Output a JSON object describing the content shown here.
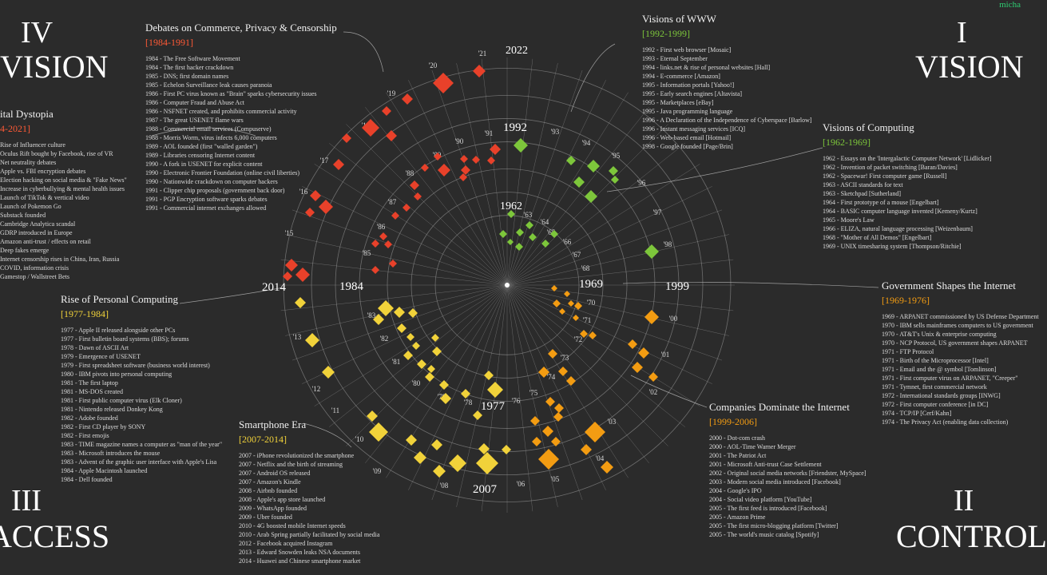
{
  "signature": "micha",
  "quadrants": {
    "q1": {
      "numeral": "I",
      "word": "VISION"
    },
    "q2": {
      "numeral": "II",
      "word": "CONTROL"
    },
    "q3": {
      "numeral": "III",
      "word": "ACCESS"
    },
    "q4": {
      "numeral": "IV",
      "word": "VISION"
    }
  },
  "year_markers": [
    "2022",
    "1992",
    "1962",
    "1969",
    "1999",
    "1977",
    "2007",
    "2014",
    "1984"
  ],
  "ring_labels": [
    "'21",
    "'20",
    "'19",
    "'18",
    "'17",
    "'16",
    "'15",
    "'13",
    "'12",
    "'11",
    "'10",
    "'09",
    "'08",
    "'06",
    "'05",
    "'04",
    "'03",
    "'02",
    "'01",
    "'00",
    "'98",
    "'97",
    "'96",
    "'95",
    "'94",
    "'93",
    "'91",
    "'90",
    "'89",
    "'88",
    "'87",
    "'86",
    "'85",
    "'83",
    "'82",
    "'81",
    "'80",
    "'79",
    "'78",
    "'76",
    "'75",
    "'74",
    "'73",
    "'72",
    "'71",
    "'70",
    "'68",
    "'67",
    "'66",
    "'65",
    "'64",
    "'63"
  ],
  "panels": {
    "www": {
      "title": "Visions of WWW",
      "range": "[1992-1999]",
      "items": [
        "1992 - First web browser [Mosaic]",
        "1993 - Eternal September",
        "1994 - links.net & rise of personal websites [Hall]",
        "1994 - E-commerce [Amazon]",
        "1995 - Information portals [Yahoo!]",
        "1995 - Early search engines [Altavista]",
        "1995 - Marketplaces [eBay]",
        "1995 - Java programming language",
        "1996 - A Declaration of the Independence of Cyberspace [Barlow]",
        "1996 - Instant messaging services [ICQ]",
        "1996 - Web-based email [Hotmail]",
        "1998 - Google founded [Page/Brin]"
      ]
    },
    "computing": {
      "title": "Visions of Computing",
      "range": "[1962-1969]",
      "items": [
        "1962 - Essays on the 'Intergalactic Computer Network' [Lidlicker]",
        "1962 - Invention of packet switching [Baran/Davies]",
        "1962 - Spacewar! First computer game [Russell]",
        "1963 - ASCII standards for text",
        "1963 - Sketchpad [Sutherland]",
        "1964 - First prototype of a mouse [Engelbart]",
        "1964 - BASIC computer language invented [Kemeny/Kurtz]",
        "1965 - Moore's Law",
        "1966 - ELIZA, natural language processing [Weizenbaum]",
        "1968 - \"Mother of All Demos\" [Engelbart]",
        "1969 - UNIX timesharing system [Thompson/Ritchie]"
      ]
    },
    "government": {
      "title": "Government Shapes the Internet",
      "range": "[1969-1976]",
      "items": [
        "1969 - ARPANET commissioned by US Defense Department",
        "1970 - IBM sells mainframes computers to US government",
        "1970 - AT&T's Unix & enterprise computing",
        "1970 - NCP Protocol, US government shapes ARPANET",
        "1971 - FTP Protocol",
        "1971 - Birth of the Microprocessor [Intel]",
        "1971 - Email and the @ symbol [Tomlinson]",
        "1971 - First computer virus on ARPANET, \"Creeper\"",
        "1971 - Tymnet, first commercial network",
        "1972 - International standards groups [INWG]",
        "1972 - First computer conference [in DC]",
        "1974 - TCP/IP [Cerf/Kahn]",
        "1974 - The Privacy Act (enabling data collection)"
      ]
    },
    "companies": {
      "title": "Companies Dominate the Internet",
      "range": "[1999-2006]",
      "items": [
        "2000 - Dot-com crash",
        "2000 - AOL-Time Warner Merger",
        "2001 - The Patriot Act",
        "2001 - Microsoft Anti-trust Case Settlement",
        "2002 - Original social media networks [Friendster, MySpace]",
        "2003 - Modern social media introduced [Facebook]",
        "2004 - Google's IPO",
        "2004 - Social video platform [YouTube]",
        "2005 - The first feed is introduced [Facebook]",
        "2005 - Amazon Prime",
        "2005 - The first micro-blogging platform [Twitter]",
        "2005 - The world's music catalog [Spotify]"
      ]
    },
    "smartphone": {
      "title": "Smartphone Era",
      "range": "[2007-2014]",
      "items": [
        "2007 - iPhone revolutionized the smartphone",
        "2007 - Netflix and the birth of streaming",
        "2007 - Android OS released",
        "2007 - Amazon's Kindle",
        "2008 - Airbnb founded",
        "2008 - Apple's app store launched",
        "2009 - WhatsApp founded",
        "2009 - Uber founded",
        "2010 - 4G boosted mobile Internet speeds",
        "2010 - Arab Spring partially facilitated by social media",
        "2012 - Facebook acquired Instagram",
        "2013 - Edward Snowden leaks NSA documents",
        "2014 - Huawei and Chinese smartphone market"
      ]
    },
    "personal": {
      "title": "Rise of Personal Computing",
      "range": "[1977-1984]",
      "items": [
        "1977 - Apple II released alongside other PCs",
        "1977 - First bulletin board systems (BBS); forums",
        "1978 - Dawn of ASCII Art",
        "1979 - Emergence of USENET",
        "1979 - First spreadsheet software (business world interest)",
        "1980 - IBM pivots into personal computing",
        "1981 - The first laptop",
        "1981 - MS-DOS created",
        "1981 - First public computer virus (Elk Cloner)",
        "1981 - Nintendo released Donkey Kong",
        "1982 - Adobe founded",
        "1982 - First CD player by SONY",
        "1982 - First emojis",
        "1983 - TIME magazine names a computer as \"man of the year\"",
        "1983 - Microsoft introduces the mouse",
        "1983 - Advent of the graphic user interface with Apple's Lisa",
        "1984 - Apple Macintosh launched",
        "1984 - Dell founded"
      ]
    },
    "commerce": {
      "title": "Debates on Commerce, Privacy & Censorship",
      "range": "[1984-1991]",
      "items": [
        "1984 - The Free Software Movement",
        "1984 - The first hacker crackdown",
        "1985 - DNS; first domain names",
        "1985 - Echelon Surveillance leak causes paranoia",
        "1986 - First PC virus known as \"Brain\" sparks cybersecurity issues",
        "1986 - Computer Fraud and Abuse Act",
        "1986 - NSFNET created, and prohibits commercial activity",
        "1987 - The great USENET flame wars",
        "1988 - Commercial email services (Compuserve)",
        "1988 - Morris Worm, virus infects 6,000 computers",
        "1989 - AOL founded (first \"walled garden\")",
        "1989 - Libraries censoring Internet content",
        "1990 - A fork in USENET for explicit content",
        "1990 - Electronic Frontier Foundation (online civil liberties)",
        "1990 - Nationwide crackdown on computer hackers",
        "1991 - Clipper chip proposals (government back door)",
        "1991 - PGP Encryption software sparks debates",
        "1991 - Commercial internet exchanges allowed"
      ]
    },
    "dystopia": {
      "title": "ital Dystopia",
      "range": "4-2021]",
      "items": [
        "Rise of Influencer culture",
        "Oculus Rift bought by Facebook, rise of VR",
        "Net neutrality debates",
        "Apple vs. FBI encryption debates",
        "Election hacking on social media & \"Fake News\"",
        "Increase in cyberbullying & mental health issues",
        "Launch of TikTok & vertical video",
        "Launch of Pokemon Go",
        "Substack founded",
        "Cambridge Analytica scandal",
        "GDRP introduced in Europe",
        "Amazon anti-trust / effects on retail",
        "Deep fakes emerge",
        "Internet censorship rises in China, Iran, Russia",
        "COVID, information crisis",
        "Gamestop / Wallstreet Bets"
      ]
    }
  },
  "colors": {
    "red": "#e8412a",
    "green": "#7dc63b",
    "orange": "#f39c12",
    "yellow": "#f1d23a",
    "signature": "#2ecc71"
  }
}
